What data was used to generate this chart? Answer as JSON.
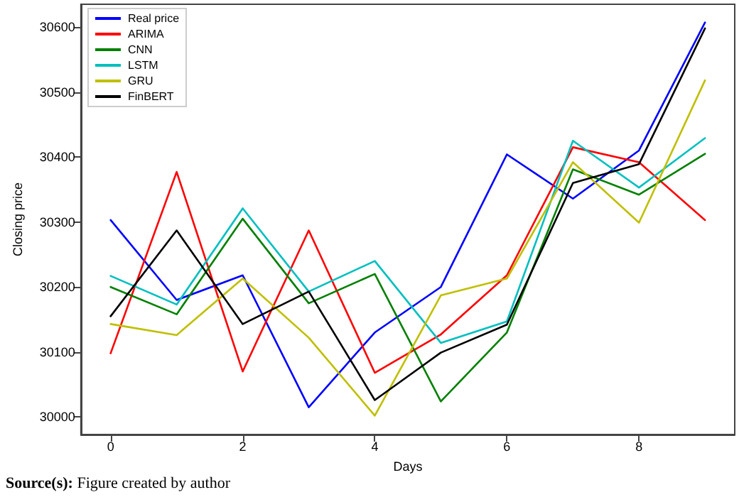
{
  "chart_data": {
    "type": "line",
    "xlabel": "Days",
    "ylabel": "Closing price",
    "x": [
      0,
      1,
      2,
      3,
      4,
      5,
      6,
      7,
      8,
      9
    ],
    "xlim": [
      -0.45,
      9.45
    ],
    "xticks": [
      0,
      2,
      4,
      6,
      8
    ],
    "ylim": [
      29973,
      30635
    ],
    "yticks": [
      30000,
      30100,
      30200,
      30300,
      30400,
      30500,
      30600
    ],
    "grid": false,
    "legend": "top left",
    "marker": "none",
    "line_style": "solid",
    "series": [
      {
        "name": "Real price",
        "color": "#0000ff",
        "values": [
          30303,
          30180,
          30218,
          30015,
          30130,
          30200,
          30404,
          30336,
          30410,
          30607
        ]
      },
      {
        "name": "ARIMA",
        "color": "#ff0000",
        "values": [
          30098,
          30377,
          30070,
          30287,
          30068,
          30127,
          30218,
          30415,
          30392,
          30303
        ]
      },
      {
        "name": "CNN",
        "color": "#008000",
        "values": [
          30200,
          30158,
          30305,
          30175,
          30220,
          30024,
          30130,
          30381,
          30342,
          30405
        ]
      },
      {
        "name": "LSTM",
        "color": "#00bfbf",
        "values": [
          30217,
          30173,
          30321,
          30193,
          30240,
          30114,
          30147,
          30425,
          30353,
          30429
        ]
      },
      {
        "name": "GRU",
        "color": "#bfbf00",
        "values": [
          30143,
          30126,
          30213,
          30122,
          30002,
          30187,
          30213,
          30392,
          30299,
          30518
        ]
      },
      {
        "name": "FinBERT",
        "color": "#000000",
        "values": [
          30155,
          30287,
          30143,
          30193,
          30026,
          30099,
          30142,
          30360,
          30389,
          30598
        ]
      }
    ],
    "annotations": [
      "Source(s): Figure created by author"
    ]
  }
}
